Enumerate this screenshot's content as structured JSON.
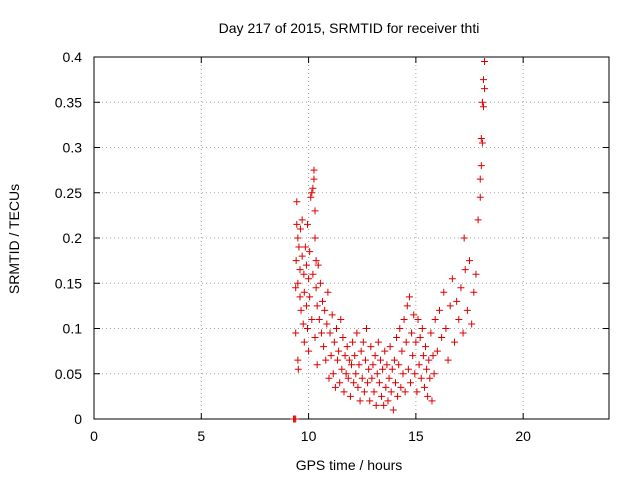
{
  "chart_data": {
    "type": "scatter",
    "title": "Day 217 of 2015, SRMTID for receiver thti",
    "xlabel": "GPS time / hours",
    "ylabel": "SRMTID / TECUs",
    "xlim": [
      0,
      24
    ],
    "ylim": [
      0,
      0.4
    ],
    "xticks": [
      0,
      5,
      10,
      15,
      20
    ],
    "yticks": [
      0,
      0.05,
      0.1,
      0.15,
      0.2,
      0.25,
      0.3,
      0.35,
      0.4
    ],
    "xtick_labels": [
      "0",
      "5",
      "10",
      "15",
      "20"
    ],
    "ytick_labels": [
      "0",
      "0.05",
      "0.1",
      "0.15",
      "0.2",
      "0.25",
      "0.3",
      "0.35",
      "0.4"
    ],
    "grid": true,
    "marker": "plus",
    "color": "#dd0000",
    "series": [
      {
        "points": [
          [
            9.3,
            0.0
          ],
          [
            9.35,
            0.0
          ],
          [
            9.4,
            0.0
          ],
          [
            9.4,
            0.095
          ],
          [
            9.4,
            0.145
          ],
          [
            9.42,
            0.175
          ],
          [
            9.45,
            0.215
          ],
          [
            9.45,
            0.24
          ],
          [
            9.5,
            0.2
          ],
          [
            9.5,
            0.15
          ],
          [
            9.5,
            0.065
          ],
          [
            9.52,
            0.055
          ],
          [
            9.55,
            0.19
          ],
          [
            9.6,
            0.165
          ],
          [
            9.6,
            0.135
          ],
          [
            9.62,
            0.21
          ],
          [
            9.65,
            0.12
          ],
          [
            9.7,
            0.18
          ],
          [
            9.7,
            0.22
          ],
          [
            9.75,
            0.105
          ],
          [
            9.78,
            0.16
          ],
          [
            9.8,
            0.14
          ],
          [
            9.8,
            0.085
          ],
          [
            9.85,
            0.19
          ],
          [
            9.9,
            0.17
          ],
          [
            9.9,
            0.125
          ],
          [
            9.95,
            0.1
          ],
          [
            9.95,
            0.215
          ],
          [
            10.0,
            0.155
          ],
          [
            10.0,
            0.075
          ],
          [
            10.05,
            0.135
          ],
          [
            10.05,
            0.185
          ],
          [
            10.1,
            0.245
          ],
          [
            10.15,
            0.25
          ],
          [
            10.15,
            0.11
          ],
          [
            10.2,
            0.255
          ],
          [
            10.2,
            0.16
          ],
          [
            10.25,
            0.265
          ],
          [
            10.25,
            0.275
          ],
          [
            10.3,
            0.23
          ],
          [
            10.3,
            0.2
          ],
          [
            10.3,
            0.09
          ],
          [
            10.35,
            0.175
          ],
          [
            10.35,
            0.145
          ],
          [
            10.4,
            0.06
          ],
          [
            10.4,
            0.125
          ],
          [
            10.45,
            0.17
          ],
          [
            10.5,
            0.11
          ],
          [
            10.55,
            0.15
          ],
          [
            10.6,
            0.095
          ],
          [
            10.65,
            0.13
          ],
          [
            10.7,
            0.08
          ],
          [
            10.75,
            0.12
          ],
          [
            10.8,
            0.065
          ],
          [
            10.85,
            0.105
          ],
          [
            10.9,
            0.14
          ],
          [
            10.95,
            0.045
          ],
          [
            11.0,
            0.095
          ],
          [
            11.05,
            0.07
          ],
          [
            11.1,
            0.115
          ],
          [
            11.15,
            0.05
          ],
          [
            11.2,
            0.085
          ],
          [
            11.25,
            0.035
          ],
          [
            11.3,
            0.1
          ],
          [
            11.35,
            0.065
          ],
          [
            11.4,
            0.075
          ],
          [
            11.45,
            0.04
          ],
          [
            11.5,
            0.11
          ],
          [
            11.55,
            0.055
          ],
          [
            11.6,
            0.09
          ],
          [
            11.65,
            0.03
          ],
          [
            11.7,
            0.07
          ],
          [
            11.75,
            0.05
          ],
          [
            11.8,
            0.08
          ],
          [
            11.85,
            0.045
          ],
          [
            11.9,
            0.065
          ],
          [
            11.95,
            0.025
          ],
          [
            12.0,
            0.06
          ],
          [
            12.05,
            0.085
          ],
          [
            12.1,
            0.04
          ],
          [
            12.15,
            0.07
          ],
          [
            12.2,
            0.05
          ],
          [
            12.25,
            0.095
          ],
          [
            12.3,
            0.035
          ],
          [
            12.35,
            0.06
          ],
          [
            12.4,
            0.02
          ],
          [
            12.45,
            0.075
          ],
          [
            12.5,
            0.045
          ],
          [
            12.55,
            0.085
          ],
          [
            12.6,
            0.03
          ],
          [
            12.65,
            0.065
          ],
          [
            12.7,
            0.1
          ],
          [
            12.75,
            0.04
          ],
          [
            12.8,
            0.055
          ],
          [
            12.85,
            0.02
          ],
          [
            12.9,
            0.08
          ],
          [
            12.95,
            0.045
          ],
          [
            13.0,
            0.06
          ],
          [
            13.05,
            0.03
          ],
          [
            13.1,
            0.07
          ],
          [
            13.15,
            0.015
          ],
          [
            13.2,
            0.05
          ],
          [
            13.25,
            0.085
          ],
          [
            13.3,
            0.04
          ],
          [
            13.35,
            0.065
          ],
          [
            13.4,
            0.025
          ],
          [
            13.45,
            0.055
          ],
          [
            13.5,
            0.015
          ],
          [
            13.55,
            0.075
          ],
          [
            13.6,
            0.035
          ],
          [
            13.65,
            0.06
          ],
          [
            13.7,
            0.02
          ],
          [
            13.75,
            0.045
          ],
          [
            13.8,
            0.08
          ],
          [
            13.85,
            0.03
          ],
          [
            13.9,
            0.055
          ],
          [
            13.95,
            0.01
          ],
          [
            14.0,
            0.065
          ],
          [
            14.05,
            0.04
          ],
          [
            14.1,
            0.09
          ],
          [
            14.15,
            0.025
          ],
          [
            14.2,
            0.06
          ],
          [
            14.25,
            0.1
          ],
          [
            14.3,
            0.035
          ],
          [
            14.35,
            0.075
          ],
          [
            14.4,
            0.05
          ],
          [
            14.45,
            0.11
          ],
          [
            14.5,
            0.03
          ],
          [
            14.55,
            0.085
          ],
          [
            14.6,
            0.125
          ],
          [
            14.65,
            0.055
          ],
          [
            14.7,
            0.135
          ],
          [
            14.75,
            0.04
          ],
          [
            14.8,
            0.095
          ],
          [
            14.85,
            0.07
          ],
          [
            14.9,
            0.115
          ],
          [
            14.95,
            0.05
          ],
          [
            15.0,
            0.085
          ],
          [
            15.05,
            0.03
          ],
          [
            15.1,
            0.11
          ],
          [
            15.15,
            0.06
          ],
          [
            15.2,
            0.09
          ],
          [
            15.25,
            0.045
          ],
          [
            15.3,
            0.1
          ],
          [
            15.35,
            0.07
          ],
          [
            15.4,
            0.035
          ],
          [
            15.45,
            0.08
          ],
          [
            15.5,
            0.055
          ],
          [
            15.55,
            0.025
          ],
          [
            15.6,
            0.065
          ],
          [
            15.65,
            0.045
          ],
          [
            15.7,
            0.095
          ],
          [
            15.75,
            0.02
          ],
          [
            15.8,
            0.07
          ],
          [
            15.85,
            0.05
          ],
          [
            15.9,
            0.11
          ],
          [
            16.0,
            0.075
          ],
          [
            16.1,
            0.12
          ],
          [
            16.2,
            0.09
          ],
          [
            16.3,
            0.14
          ],
          [
            16.4,
            0.1
          ],
          [
            16.5,
            0.065
          ],
          [
            16.6,
            0.125
          ],
          [
            16.7,
            0.155
          ],
          [
            16.8,
            0.085
          ],
          [
            16.9,
            0.13
          ],
          [
            17.0,
            0.11
          ],
          [
            17.1,
            0.145
          ],
          [
            17.2,
            0.095
          ],
          [
            17.25,
            0.2
          ],
          [
            17.3,
            0.165
          ],
          [
            17.4,
            0.12
          ],
          [
            17.5,
            0.175
          ],
          [
            17.6,
            0.105
          ],
          [
            17.7,
            0.14
          ],
          [
            17.8,
            0.16
          ],
          [
            17.9,
            0.22
          ],
          [
            18.0,
            0.265
          ],
          [
            18.0,
            0.245
          ],
          [
            18.05,
            0.31
          ],
          [
            18.05,
            0.28
          ],
          [
            18.1,
            0.35
          ],
          [
            18.1,
            0.305
          ],
          [
            18.15,
            0.375
          ],
          [
            18.15,
            0.345
          ],
          [
            18.2,
            0.395
          ],
          [
            18.2,
            0.365
          ]
        ]
      }
    ]
  }
}
